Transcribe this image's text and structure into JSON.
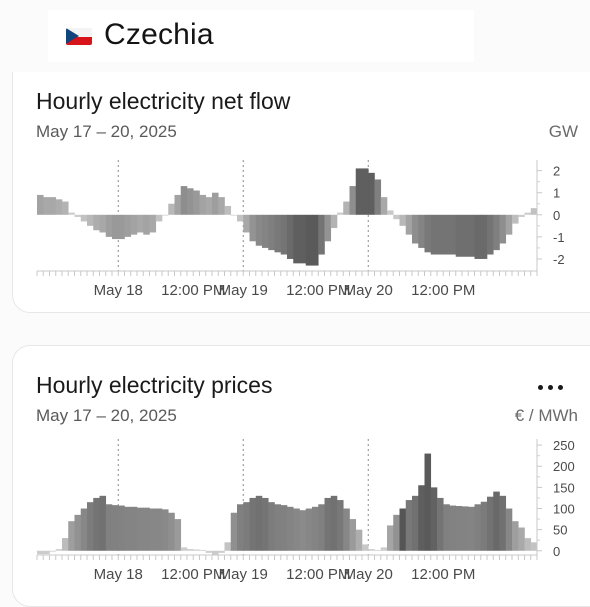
{
  "header": {
    "country": "Czechia",
    "flag_icon": "czech-flag-icon"
  },
  "charts": {
    "netflow": {
      "title": "Hourly electricity net flow",
      "subtitle": "May 17 – 20, 2025",
      "unit": "GW"
    },
    "prices": {
      "title": "Hourly electricity prices",
      "subtitle": "May 17 – 20, 2025",
      "unit": "€ / MWh",
      "menu_icon": "more-options-icon"
    }
  },
  "chart_data": [
    {
      "type": "bar",
      "title": "Hourly electricity net flow",
      "ylabel": "GW",
      "ylim": [
        -2.5,
        2.3
      ],
      "yticks": [
        2,
        1,
        0,
        -1,
        -2
      ],
      "xticks": [
        "May 18",
        "12:00 PM",
        "May 19",
        "12:00 PM",
        "May 20",
        "12:00 PM"
      ],
      "values": [
        0.9,
        0.8,
        0.8,
        0.7,
        0.6,
        0.1,
        -0.1,
        -0.3,
        -0.5,
        -0.7,
        -0.8,
        -1.0,
        -1.1,
        -1.1,
        -1.0,
        -0.9,
        -0.8,
        -0.9,
        -0.8,
        -0.3,
        0.0,
        0.5,
        0.9,
        1.3,
        1.2,
        1.1,
        0.9,
        0.8,
        1.0,
        0.8,
        0.4,
        0.0,
        -0.3,
        -0.8,
        -1.2,
        -1.4,
        -1.5,
        -1.6,
        -1.7,
        -1.8,
        -2.0,
        -2.2,
        -2.2,
        -2.3,
        -2.3,
        -1.8,
        -1.2,
        -0.6,
        0.1,
        0.6,
        1.3,
        2.1,
        2.1,
        1.9,
        1.6,
        0.8,
        0.2,
        -0.2,
        -0.5,
        -0.9,
        -1.3,
        -1.5,
        -1.7,
        -1.8,
        -1.8,
        -1.8,
        -1.8,
        -1.9,
        -1.9,
        -1.9,
        -2.0,
        -2.0,
        -1.8,
        -1.6,
        -1.3,
        -0.9,
        -0.4,
        -0.1,
        0.1,
        0.3
      ]
    },
    {
      "type": "bar",
      "title": "Hourly electricity prices",
      "ylabel": "€ / MWh",
      "ylim": [
        -10,
        255
      ],
      "yticks": [
        250,
        200,
        150,
        100,
        50,
        0
      ],
      "xticks": [
        "May 18",
        "12:00 PM",
        "May 19",
        "12:00 PM",
        "May 20",
        "12:00 PM"
      ],
      "highlight_index": 58,
      "values": [
        -8,
        -8,
        -2,
        4,
        30,
        70,
        85,
        100,
        115,
        125,
        130,
        110,
        108,
        107,
        104,
        104,
        102,
        102,
        100,
        100,
        98,
        90,
        75,
        8,
        4,
        3,
        2,
        -5,
        -10,
        -5,
        20,
        90,
        110,
        115,
        125,
        130,
        125,
        115,
        110,
        108,
        104,
        100,
        96,
        100,
        104,
        110,
        125,
        130,
        120,
        100,
        75,
        50,
        15,
        4,
        2,
        8,
        60,
        85,
        100,
        120,
        130,
        155,
        230,
        150,
        125,
        110,
        107,
        106,
        105,
        104,
        110,
        116,
        128,
        140,
        130,
        100,
        70,
        55,
        30,
        20
      ]
    }
  ]
}
